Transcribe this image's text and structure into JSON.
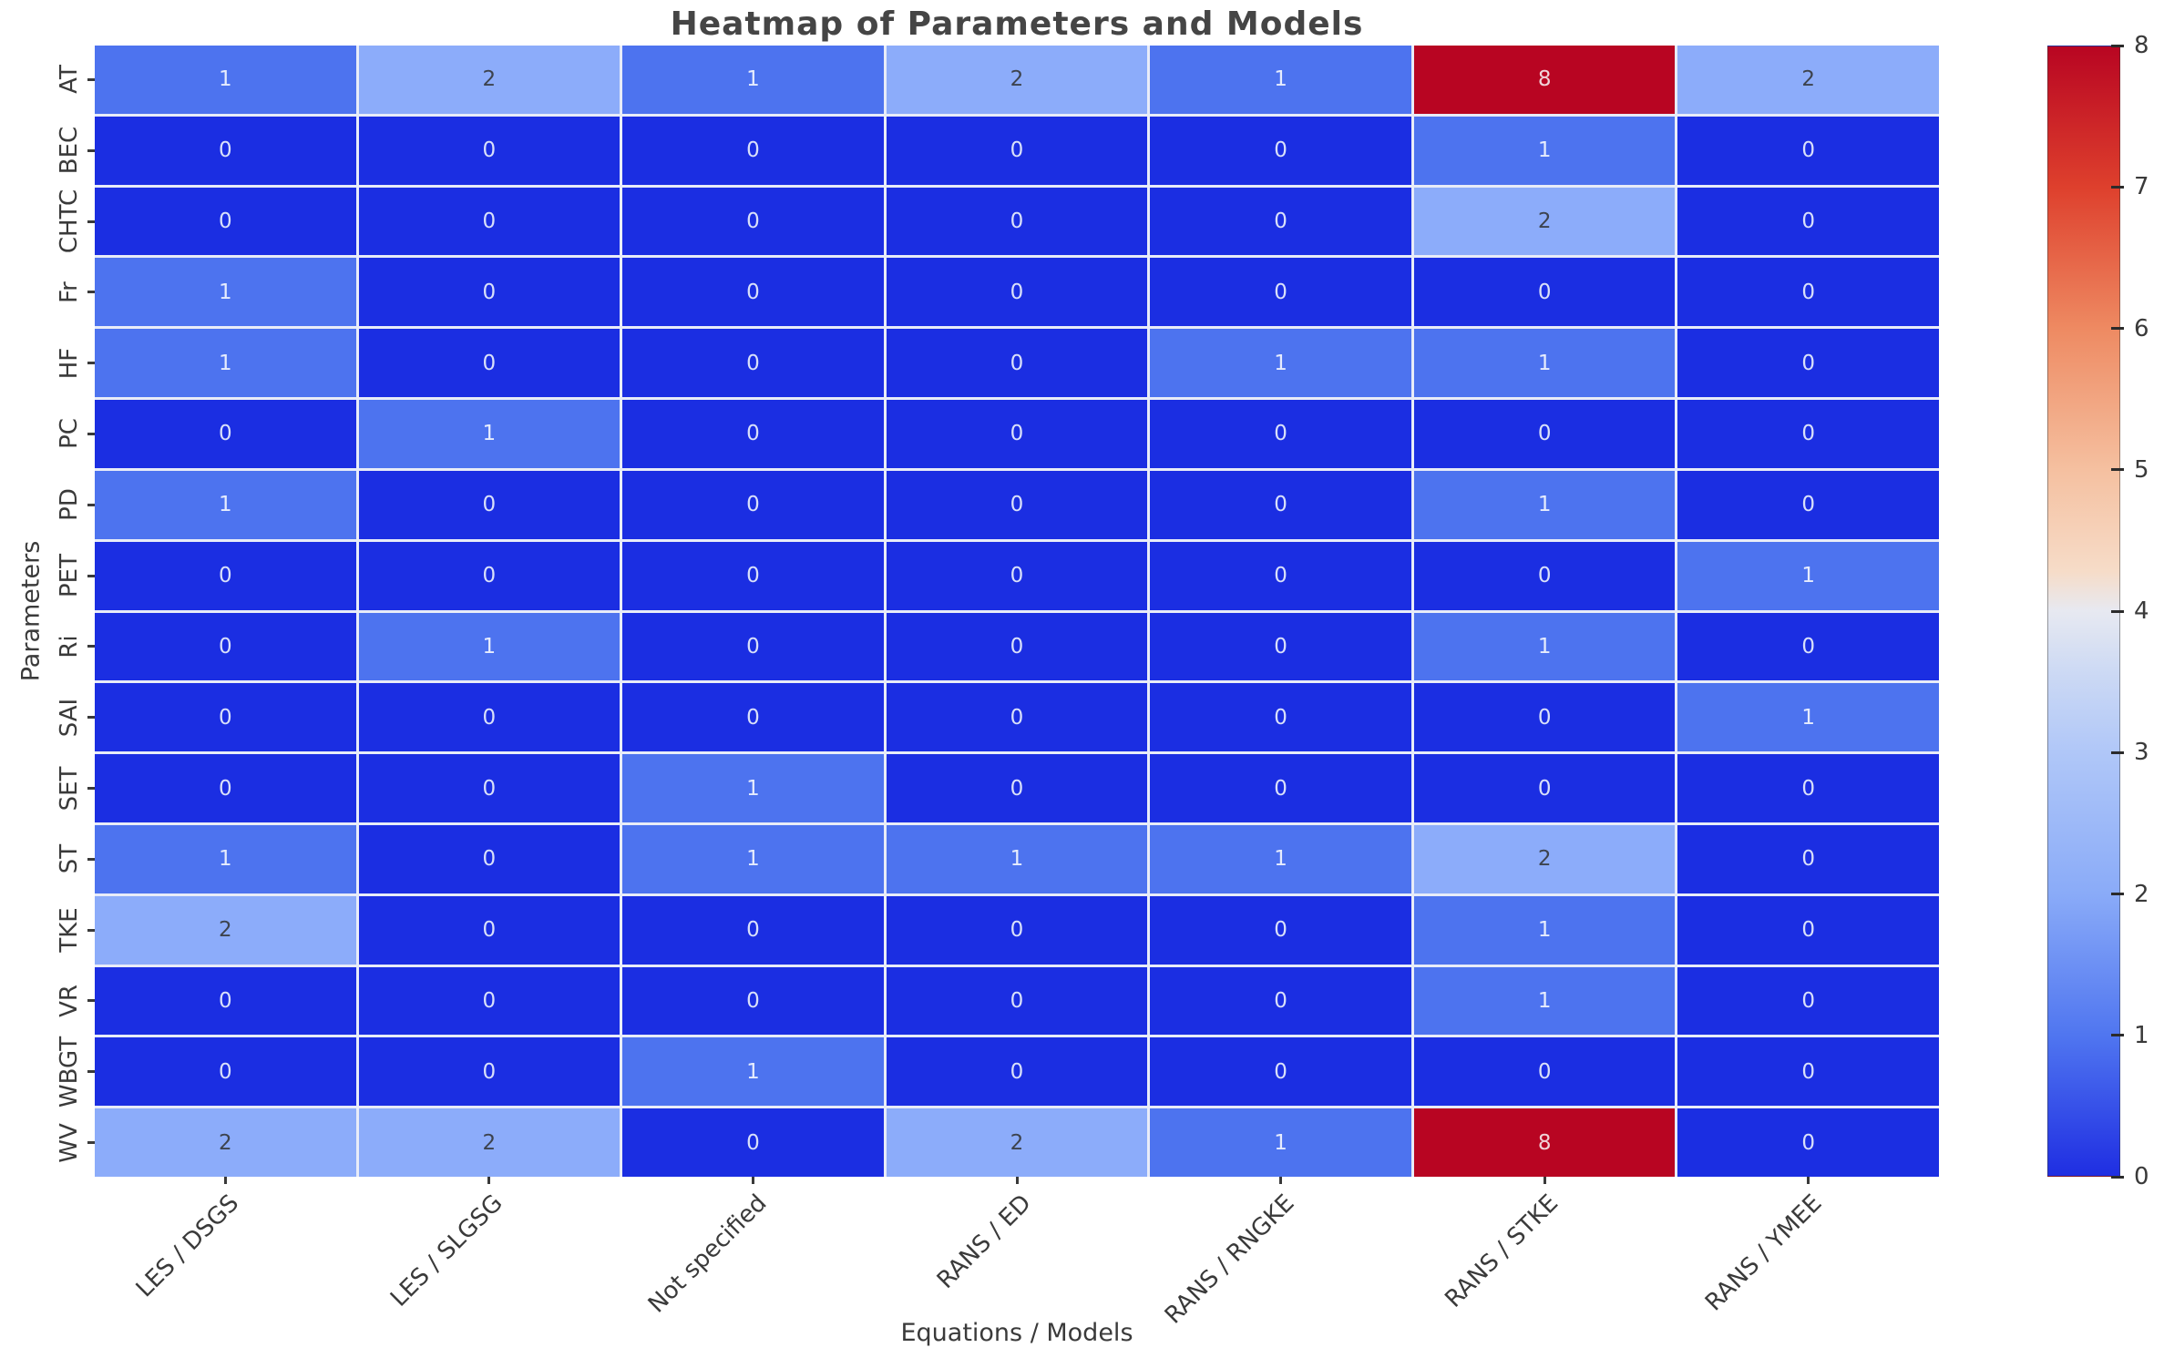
{
  "figure": {
    "title": "Heatmap of Parameters and Models",
    "xlabel": "Equations / Models",
    "ylabel": "Parameters"
  },
  "chart_data": {
    "type": "heatmap",
    "title": "Heatmap of Parameters and Models",
    "xlabel": "Equations / Models",
    "ylabel": "Parameters",
    "columns": [
      "LES / DSGS",
      "LES / SLGSG",
      "Not specified",
      "RANS / ED",
      "RANS / RNGKE",
      "RANS / STKE",
      "RANS / YMEE"
    ],
    "rows": [
      "AT",
      "BEC",
      "CHTC",
      "Fr",
      "HF",
      "PC",
      "PD",
      "PET",
      "Ri",
      "SAI",
      "SET",
      "ST",
      "TKE",
      "VR",
      "WBGT",
      "WV"
    ],
    "values": [
      [
        1,
        2,
        1,
        2,
        1,
        8,
        2
      ],
      [
        0,
        0,
        0,
        0,
        0,
        1,
        0
      ],
      [
        0,
        0,
        0,
        0,
        0,
        2,
        0
      ],
      [
        1,
        0,
        0,
        0,
        0,
        0,
        0
      ],
      [
        1,
        0,
        0,
        0,
        1,
        1,
        0
      ],
      [
        0,
        1,
        0,
        0,
        0,
        0,
        0
      ],
      [
        1,
        0,
        0,
        0,
        0,
        1,
        0
      ],
      [
        0,
        0,
        0,
        0,
        0,
        0,
        1
      ],
      [
        0,
        1,
        0,
        0,
        0,
        1,
        0
      ],
      [
        0,
        0,
        0,
        0,
        0,
        0,
        1
      ],
      [
        0,
        0,
        1,
        0,
        0,
        0,
        0
      ],
      [
        1,
        0,
        1,
        1,
        1,
        2,
        0
      ],
      [
        2,
        0,
        0,
        0,
        0,
        1,
        0
      ],
      [
        0,
        0,
        0,
        0,
        0,
        1,
        0
      ],
      [
        0,
        0,
        1,
        0,
        0,
        0,
        0
      ],
      [
        2,
        2,
        0,
        2,
        1,
        8,
        0
      ]
    ],
    "grid": true,
    "legend_position": "right-colorbar",
    "colorbar": {
      "min": 0,
      "max": 8,
      "ticks": [
        8,
        7,
        6,
        5,
        4,
        3,
        2,
        1,
        0
      ],
      "gradient": [
        {
          "at": 0.0,
          "color": "#b80522"
        },
        {
          "at": 0.125,
          "color": "#de402d"
        },
        {
          "at": 0.25,
          "color": "#ee8a62"
        },
        {
          "at": 0.375,
          "color": "#f5c0a0"
        },
        {
          "at": 0.465,
          "color": "#f6dcc8"
        },
        {
          "at": 0.5,
          "color": "#e7e9f1"
        },
        {
          "at": 0.555,
          "color": "#ccd9f4"
        },
        {
          "at": 0.625,
          "color": "#b0c7f8"
        },
        {
          "at": 0.75,
          "color": "#8aabf8"
        },
        {
          "at": 0.875,
          "color": "#5076f0"
        },
        {
          "at": 1.0,
          "color": "#1f2ee2"
        }
      ]
    },
    "value_colors": {
      "0": "#1b2ee2",
      "1": "#4d73ef",
      "2": "#8cacfa",
      "8": "#b80522"
    },
    "value_text_colors": {
      "0": "#d9e0fa",
      "1": "#e6ecfd",
      "2": "#3d434e",
      "8": "#efd3d8"
    }
  }
}
